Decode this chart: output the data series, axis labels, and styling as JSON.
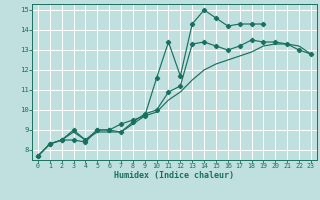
{
  "xlabel": "Humidex (Indice chaleur)",
  "bg_color": "#c0e0e0",
  "grid_color": "#ffffff",
  "line_color": "#1a7060",
  "xlim": [
    -0.5,
    23.5
  ],
  "ylim": [
    7.5,
    15.3
  ],
  "xticks": [
    0,
    1,
    2,
    3,
    4,
    5,
    6,
    7,
    8,
    9,
    10,
    11,
    12,
    13,
    14,
    15,
    16,
    17,
    18,
    19,
    20,
    21,
    22,
    23
  ],
  "yticks": [
    8,
    9,
    10,
    11,
    12,
    13,
    14,
    15
  ],
  "line1_x": [
    0,
    1,
    2,
    3,
    4,
    5,
    6,
    7,
    8,
    9,
    10,
    11,
    12,
    13,
    14,
    15,
    16,
    17,
    18,
    19
  ],
  "line1_y": [
    7.7,
    8.3,
    8.5,
    8.5,
    8.4,
    9.0,
    9.0,
    9.3,
    9.5,
    9.7,
    11.6,
    13.4,
    11.7,
    14.3,
    15.0,
    14.6,
    14.2,
    14.3,
    14.3,
    14.3
  ],
  "line2_x": [
    0,
    1,
    2,
    3,
    4,
    5,
    6,
    7,
    8,
    9,
    10,
    11,
    12,
    13,
    14,
    15,
    16,
    17,
    18,
    19,
    20,
    21,
    22,
    23
  ],
  "line2_y": [
    7.7,
    8.3,
    8.5,
    9.0,
    8.5,
    9.0,
    9.0,
    8.9,
    9.4,
    9.8,
    10.0,
    10.9,
    11.2,
    13.3,
    13.4,
    13.2,
    13.0,
    13.2,
    13.5,
    13.4,
    13.4,
    13.3,
    13.0,
    12.8
  ],
  "line3_x": [
    0,
    1,
    2,
    3,
    4,
    5,
    6,
    7,
    8,
    9,
    10,
    11,
    12,
    13,
    14,
    15,
    16,
    17,
    18,
    19,
    20,
    21,
    22,
    23
  ],
  "line3_y": [
    7.7,
    8.3,
    8.5,
    8.9,
    8.5,
    8.9,
    8.9,
    8.9,
    9.3,
    9.7,
    9.9,
    10.5,
    10.9,
    11.5,
    12.0,
    12.3,
    12.5,
    12.7,
    12.9,
    13.2,
    13.3,
    13.3,
    13.2,
    12.8
  ]
}
